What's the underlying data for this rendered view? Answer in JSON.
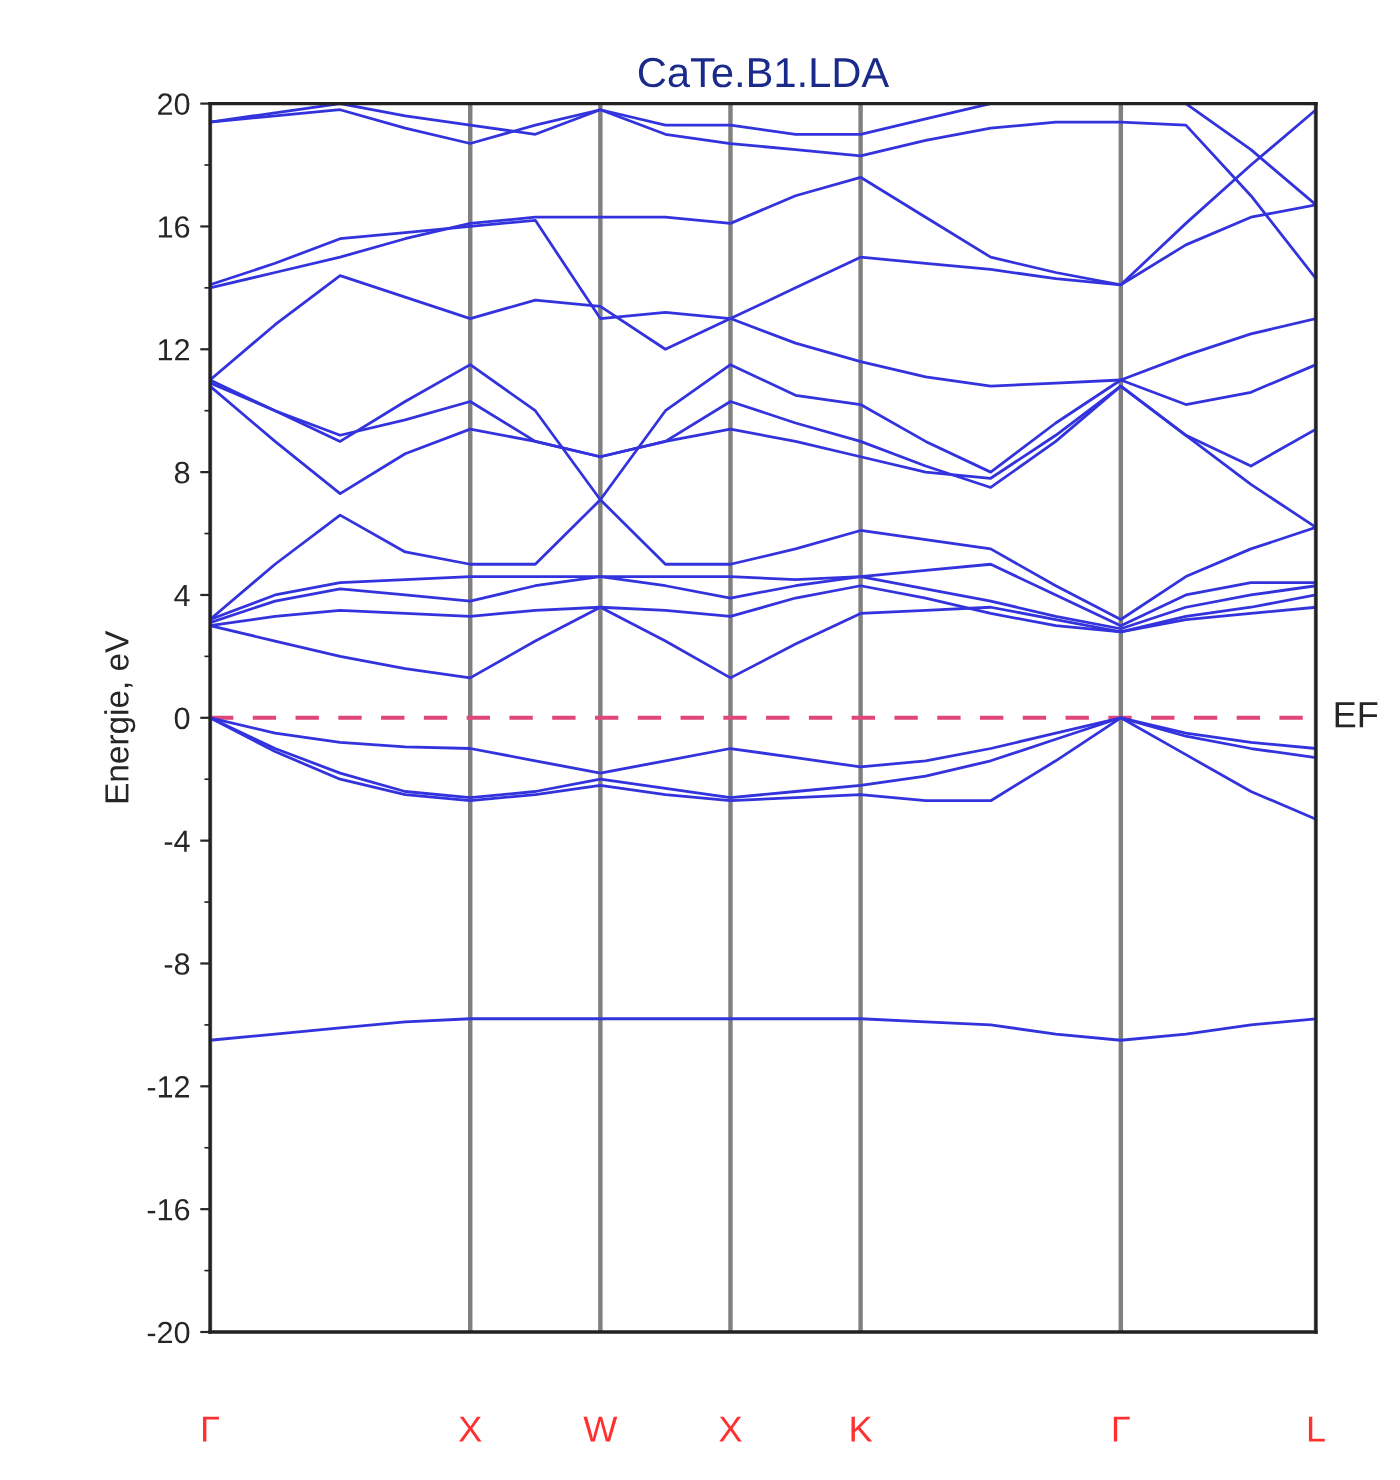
{
  "chart_data": {
    "type": "line",
    "title": "CaTe.B1.LDA",
    "ylabel": "Energie, eV",
    "categories": [
      "Γ",
      null,
      null,
      null,
      "X",
      null,
      "W",
      null,
      "X",
      null,
      "K",
      null,
      null,
      null,
      "Γ",
      null,
      null,
      "L"
    ],
    "ylim": [
      -20,
      20
    ],
    "yticks": [
      -20,
      -16,
      -12,
      -8,
      -4,
      0,
      4,
      8,
      12,
      16,
      20
    ],
    "grid": "x",
    "legend": false,
    "marker": "none",
    "line_style": "solid",
    "ref_lines": [
      {
        "axis": "y",
        "value": 0,
        "label": "EF",
        "color": "#e0457b",
        "line_style": "dashed"
      }
    ],
    "series": [
      {
        "color": "#3333dd",
        "values": [
          -10.5,
          -10.3,
          -10.1,
          -9.9,
          -9.8,
          -9.8,
          -9.8,
          -9.8,
          -9.8,
          -9.8,
          -9.8,
          -9.9,
          -10.0,
          -10.3,
          -10.5,
          -10.3,
          -10.0,
          -9.8
        ]
      },
      {
        "color": "#3333dd",
        "values": [
          0,
          -0.5,
          -0.8,
          -0.95,
          -1.0,
          -1.4,
          -1.8,
          -1.4,
          -1.0,
          -1.3,
          -1.6,
          -1.4,
          -1.0,
          -0.5,
          0,
          -0.5,
          -0.8,
          -1.0
        ]
      },
      {
        "color": "#3333dd",
        "values": [
          0,
          -1.0,
          -1.8,
          -2.4,
          -2.6,
          -2.4,
          -2.0,
          -2.3,
          -2.6,
          -2.4,
          -2.2,
          -1.9,
          -1.4,
          -0.7,
          0,
          -0.6,
          -1.0,
          -1.3
        ]
      },
      {
        "color": "#3333dd",
        "values": [
          0,
          -1.1,
          -2.0,
          -2.5,
          -2.7,
          -2.5,
          -2.2,
          -2.5,
          -2.7,
          -2.6,
          -2.5,
          -2.7,
          -2.7,
          -1.4,
          0,
          -1.2,
          -2.4,
          -3.3
        ]
      },
      {
        "color": "#3333dd",
        "values": [
          3.0,
          2.5,
          2.0,
          1.6,
          1.3,
          2.5,
          3.6,
          2.5,
          1.3,
          2.4,
          3.4,
          3.5,
          3.6,
          3.2,
          2.8,
          3.2,
          3.4,
          3.6
        ]
      },
      {
        "color": "#3333dd",
        "values": [
          3.0,
          3.3,
          3.5,
          3.4,
          3.3,
          3.5,
          3.6,
          3.5,
          3.3,
          3.9,
          4.3,
          3.9,
          3.4,
          3.0,
          2.8,
          3.3,
          3.6,
          4.0
        ]
      },
      {
        "color": "#3333dd",
        "values": [
          3.1,
          3.8,
          4.2,
          4.0,
          3.8,
          4.3,
          4.6,
          4.3,
          3.9,
          4.3,
          4.6,
          4.2,
          3.8,
          3.3,
          2.9,
          3.6,
          4.0,
          4.3
        ]
      },
      {
        "color": "#3333dd",
        "values": [
          3.2,
          4.0,
          4.4,
          4.5,
          4.6,
          4.6,
          4.6,
          4.6,
          4.6,
          4.5,
          4.6,
          4.8,
          5.0,
          4.0,
          3.0,
          4.0,
          4.4,
          4.4
        ]
      },
      {
        "color": "#3333dd",
        "values": [
          3.2,
          5.0,
          6.6,
          5.4,
          5.0,
          5.0,
          7.1,
          5.0,
          5.0,
          5.5,
          6.1,
          5.8,
          5.5,
          4.3,
          3.2,
          4.6,
          5.5,
          6.2
        ]
      },
      {
        "color": "#3333dd",
        "values": [
          10.8,
          9.0,
          7.3,
          8.6,
          9.4,
          9.0,
          8.5,
          9.0,
          9.4,
          9.0,
          8.5,
          8.0,
          7.8,
          9.2,
          10.8,
          9.2,
          7.6,
          6.2
        ]
      },
      {
        "color": "#3333dd",
        "values": [
          10.9,
          10.0,
          9.2,
          9.7,
          10.3,
          9.0,
          8.5,
          9.0,
          10.3,
          9.6,
          9.0,
          8.2,
          7.5,
          9.0,
          10.8,
          9.2,
          8.2,
          9.4
        ]
      },
      {
        "color": "#3333dd",
        "values": [
          11.0,
          10.0,
          9.0,
          10.3,
          11.5,
          10.0,
          7.1,
          10.0,
          11.5,
          10.5,
          10.2,
          9.0,
          8.0,
          9.6,
          11.0,
          10.2,
          10.6,
          11.5
        ]
      },
      {
        "color": "#3333dd",
        "values": [
          11.0,
          12.8,
          14.4,
          13.7,
          13.0,
          13.6,
          13.4,
          12.0,
          13.0,
          12.2,
          11.6,
          11.1,
          10.8,
          10.9,
          11.0,
          11.8,
          12.5,
          13.0
        ]
      },
      {
        "color": "#3333dd",
        "values": [
          14.0,
          14.5,
          15.0,
          15.6,
          16.1,
          16.3,
          16.3,
          16.3,
          16.1,
          17.0,
          17.6,
          16.3,
          15.0,
          14.5,
          14.1,
          15.4,
          16.3,
          16.7
        ]
      },
      {
        "color": "#3333dd",
        "values": [
          14.1,
          14.8,
          15.6,
          15.8,
          16.0,
          16.2,
          13.0,
          13.2,
          13.0,
          14.0,
          15.0,
          14.8,
          14.6,
          14.3,
          14.1,
          16.1,
          18.0,
          19.8
        ]
      },
      {
        "color": "#3333dd",
        "values": [
          19.4,
          19.6,
          19.8,
          19.2,
          18.7,
          19.3,
          19.8,
          19.0,
          18.7,
          18.5,
          18.3,
          18.8,
          19.2,
          19.4,
          19.4,
          19.3,
          17.0,
          14.3
        ]
      },
      {
        "color": "#3333dd",
        "values": [
          19.4,
          19.7,
          20,
          19.6,
          19.3,
          19.0,
          19.8,
          19.3,
          19.3,
          19.0,
          19.0,
          19.5,
          20,
          null,
          20,
          20,
          18.5,
          16.7
        ]
      }
    ]
  }
}
